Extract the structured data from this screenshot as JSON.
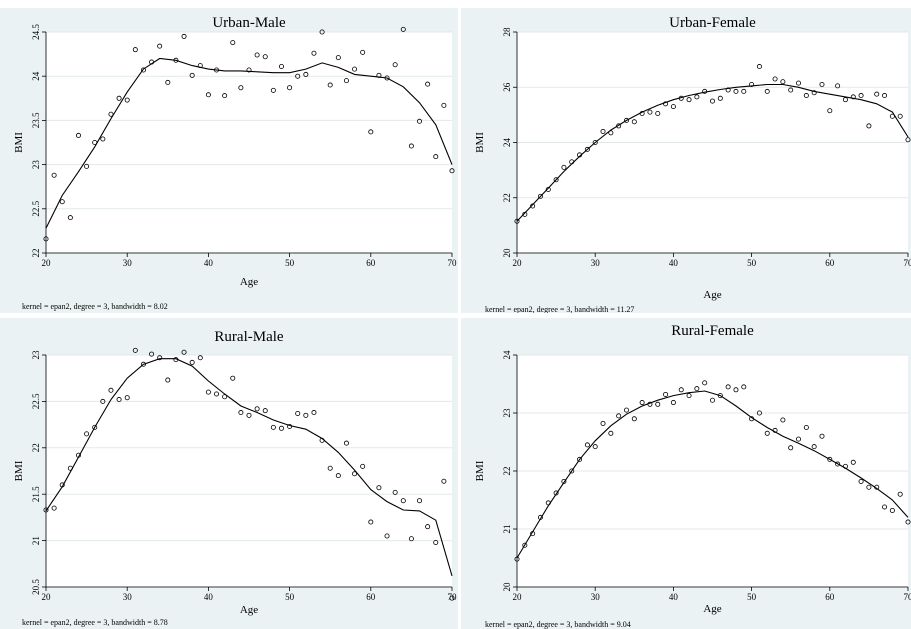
{
  "chart_data": [
    {
      "type": "scatter",
      "title": "Urban-Male",
      "xlabel": "Age",
      "ylabel": "BMI",
      "xlim": [
        20,
        70
      ],
      "ylim": [
        22,
        24.5
      ],
      "xticks": [
        "20",
        "30",
        "40",
        "50",
        "60",
        "70"
      ],
      "yticks": [
        "22",
        "22.5",
        "23",
        "23.5",
        "24",
        "24.5"
      ],
      "note": "kernel = epan2, degree = 3, bandwidth = 8.02",
      "grid": true,
      "points": [
        [
          20,
          22.16
        ],
        [
          21,
          22.88
        ],
        [
          22,
          22.58
        ],
        [
          23,
          22.4
        ],
        [
          24,
          23.33
        ],
        [
          25,
          22.98
        ],
        [
          26,
          23.25
        ],
        [
          27,
          23.29
        ],
        [
          28,
          23.57
        ],
        [
          29,
          23.75
        ],
        [
          30,
          23.73
        ],
        [
          31,
          24.3
        ],
        [
          32,
          24.07
        ],
        [
          33,
          24.16
        ],
        [
          34,
          24.34
        ],
        [
          35,
          23.93
        ],
        [
          36,
          24.18
        ],
        [
          37,
          24.45
        ],
        [
          38,
          24.01
        ],
        [
          39,
          24.12
        ],
        [
          40,
          23.79
        ],
        [
          41,
          24.07
        ],
        [
          42,
          23.78
        ],
        [
          43,
          24.38
        ],
        [
          44,
          23.87
        ],
        [
          45,
          24.07
        ],
        [
          46,
          24.24
        ],
        [
          47,
          24.22
        ],
        [
          48,
          23.84
        ],
        [
          49,
          24.11
        ],
        [
          50,
          23.87
        ],
        [
          51,
          24.0
        ],
        [
          52,
          24.02
        ],
        [
          53,
          24.26
        ],
        [
          54,
          24.5
        ],
        [
          55,
          23.9
        ],
        [
          56,
          24.21
        ],
        [
          57,
          23.95
        ],
        [
          58,
          24.08
        ],
        [
          59,
          24.27
        ],
        [
          60,
          23.37
        ],
        [
          61,
          24.01
        ],
        [
          62,
          23.98
        ],
        [
          63,
          24.13
        ],
        [
          64,
          24.53
        ],
        [
          65,
          23.21
        ],
        [
          66,
          23.49
        ],
        [
          67,
          23.91
        ],
        [
          68,
          23.09
        ],
        [
          69,
          23.67
        ],
        [
          70,
          22.93
        ]
      ],
      "fit": [
        [
          20,
          22.28
        ],
        [
          22,
          22.65
        ],
        [
          24,
          22.92
        ],
        [
          26,
          23.2
        ],
        [
          28,
          23.52
        ],
        [
          30,
          23.82
        ],
        [
          32,
          24.08
        ],
        [
          34,
          24.2
        ],
        [
          36,
          24.18
        ],
        [
          38,
          24.12
        ],
        [
          40,
          24.08
        ],
        [
          42,
          24.06
        ],
        [
          44,
          24.06
        ],
        [
          46,
          24.05
        ],
        [
          48,
          24.04
        ],
        [
          50,
          24.04
        ],
        [
          52,
          24.08
        ],
        [
          54,
          24.15
        ],
        [
          56,
          24.1
        ],
        [
          58,
          24.02
        ],
        [
          60,
          24.0
        ],
        [
          62,
          23.98
        ],
        [
          64,
          23.88
        ],
        [
          66,
          23.7
        ],
        [
          68,
          23.45
        ],
        [
          70,
          23.0
        ]
      ]
    },
    {
      "type": "scatter",
      "title": "Urban-Female",
      "xlabel": "Age",
      "ylabel": "BMI",
      "xlim": [
        20,
        70
      ],
      "ylim": [
        20,
        28
      ],
      "xticks": [
        "20",
        "30",
        "40",
        "50",
        "60",
        "70"
      ],
      "yticks": [
        "20",
        "22",
        "24",
        "26",
        "28"
      ],
      "note": "kernel = epan2, degree = 3, bandwidth = 11.27",
      "grid": true,
      "points": [
        [
          20,
          21.15
        ],
        [
          21,
          21.4
        ],
        [
          22,
          21.7
        ],
        [
          23,
          22.05
        ],
        [
          24,
          22.3
        ],
        [
          25,
          22.65
        ],
        [
          26,
          23.1
        ],
        [
          27,
          23.3
        ],
        [
          28,
          23.55
        ],
        [
          29,
          23.75
        ],
        [
          30,
          24.0
        ],
        [
          31,
          24.4
        ],
        [
          32,
          24.35
        ],
        [
          33,
          24.6
        ],
        [
          34,
          24.8
        ],
        [
          35,
          24.75
        ],
        [
          36,
          25.05
        ],
        [
          37,
          25.1
        ],
        [
          38,
          25.05
        ],
        [
          39,
          25.4
        ],
        [
          40,
          25.3
        ],
        [
          41,
          25.6
        ],
        [
          42,
          25.55
        ],
        [
          43,
          25.65
        ],
        [
          44,
          25.85
        ],
        [
          45,
          25.5
        ],
        [
          46,
          25.6
        ],
        [
          47,
          25.9
        ],
        [
          48,
          25.85
        ],
        [
          49,
          25.85
        ],
        [
          50,
          26.1
        ],
        [
          51,
          26.75
        ],
        [
          52,
          25.85
        ],
        [
          53,
          26.3
        ],
        [
          54,
          26.2
        ],
        [
          55,
          25.9
        ],
        [
          56,
          26.15
        ],
        [
          57,
          25.7
        ],
        [
          58,
          25.8
        ],
        [
          59,
          26.1
        ],
        [
          60,
          25.15
        ],
        [
          61,
          26.05
        ],
        [
          62,
          25.55
        ],
        [
          63,
          25.65
        ],
        [
          64,
          25.7
        ],
        [
          65,
          24.6
        ],
        [
          66,
          25.75
        ],
        [
          67,
          25.7
        ],
        [
          68,
          24.95
        ],
        [
          69,
          24.95
        ],
        [
          70,
          24.1
        ]
      ],
      "fit": [
        [
          20,
          21.15
        ],
        [
          22,
          21.75
        ],
        [
          24,
          22.35
        ],
        [
          26,
          22.95
        ],
        [
          28,
          23.5
        ],
        [
          30,
          24.0
        ],
        [
          32,
          24.45
        ],
        [
          34,
          24.8
        ],
        [
          36,
          25.1
        ],
        [
          38,
          25.35
        ],
        [
          40,
          25.55
        ],
        [
          42,
          25.7
        ],
        [
          44,
          25.82
        ],
        [
          46,
          25.92
        ],
        [
          48,
          26.0
        ],
        [
          50,
          26.05
        ],
        [
          52,
          26.1
        ],
        [
          54,
          26.1
        ],
        [
          56,
          26.0
        ],
        [
          58,
          25.85
        ],
        [
          60,
          25.75
        ],
        [
          62,
          25.65
        ],
        [
          64,
          25.55
        ],
        [
          66,
          25.4
        ],
        [
          68,
          25.1
        ],
        [
          70,
          24.2
        ]
      ]
    },
    {
      "type": "scatter",
      "title": "Rural-Male",
      "xlabel": "Age",
      "ylabel": "BMI",
      "xlim": [
        20,
        70
      ],
      "ylim": [
        20.5,
        23
      ],
      "xticks": [
        "20",
        "30",
        "40",
        "50",
        "60",
        "70"
      ],
      "yticks": [
        "20.5",
        "21",
        "21.5",
        "22",
        "22.5",
        "23"
      ],
      "note": "kernel = epan2, degree = 3, bandwidth = 8.78",
      "grid": true,
      "points": [
        [
          20,
          21.33
        ],
        [
          21,
          21.35
        ],
        [
          22,
          21.6
        ],
        [
          23,
          21.78
        ],
        [
          24,
          21.92
        ],
        [
          25,
          22.15
        ],
        [
          26,
          22.22
        ],
        [
          27,
          22.5
        ],
        [
          28,
          22.62
        ],
        [
          29,
          22.52
        ],
        [
          30,
          22.54
        ],
        [
          31,
          23.05
        ],
        [
          32,
          22.9
        ],
        [
          33,
          23.01
        ],
        [
          34,
          22.97
        ],
        [
          35,
          22.73
        ],
        [
          36,
          22.95
        ],
        [
          37,
          23.03
        ],
        [
          38,
          22.92
        ],
        [
          39,
          22.97
        ],
        [
          40,
          22.6
        ],
        [
          41,
          22.58
        ],
        [
          42,
          22.55
        ],
        [
          43,
          22.75
        ],
        [
          44,
          22.38
        ],
        [
          45,
          22.35
        ],
        [
          46,
          22.42
        ],
        [
          47,
          22.4
        ],
        [
          48,
          22.22
        ],
        [
          49,
          22.21
        ],
        [
          50,
          22.23
        ],
        [
          51,
          22.37
        ],
        [
          52,
          22.35
        ],
        [
          53,
          22.38
        ],
        [
          54,
          22.08
        ],
        [
          55,
          21.78
        ],
        [
          56,
          21.7
        ],
        [
          57,
          22.05
        ],
        [
          58,
          21.72
        ],
        [
          59,
          21.8
        ],
        [
          60,
          21.2
        ],
        [
          61,
          21.57
        ],
        [
          62,
          21.05
        ],
        [
          63,
          21.52
        ],
        [
          64,
          21.43
        ],
        [
          65,
          21.02
        ],
        [
          66,
          21.43
        ],
        [
          67,
          21.15
        ],
        [
          68,
          20.98
        ],
        [
          69,
          21.64
        ],
        [
          70,
          20.38
        ]
      ],
      "fit": [
        [
          20,
          21.32
        ],
        [
          22,
          21.58
        ],
        [
          24,
          21.9
        ],
        [
          26,
          22.22
        ],
        [
          28,
          22.52
        ],
        [
          30,
          22.75
        ],
        [
          32,
          22.9
        ],
        [
          34,
          22.96
        ],
        [
          36,
          22.96
        ],
        [
          38,
          22.88
        ],
        [
          40,
          22.72
        ],
        [
          42,
          22.58
        ],
        [
          44,
          22.45
        ],
        [
          46,
          22.38
        ],
        [
          48,
          22.3
        ],
        [
          50,
          22.24
        ],
        [
          52,
          22.2
        ],
        [
          54,
          22.1
        ],
        [
          56,
          21.95
        ],
        [
          58,
          21.76
        ],
        [
          60,
          21.55
        ],
        [
          62,
          21.42
        ],
        [
          64,
          21.33
        ],
        [
          66,
          21.32
        ],
        [
          68,
          21.22
        ],
        [
          70,
          20.62
        ]
      ]
    },
    {
      "type": "scatter",
      "title": "Rural-Female",
      "xlabel": "Age",
      "ylabel": "BMI",
      "xlim": [
        20,
        70
      ],
      "ylim": [
        20,
        24
      ],
      "xticks": [
        "20",
        "30",
        "40",
        "50",
        "60",
        "70"
      ],
      "yticks": [
        "20",
        "21",
        "22",
        "23",
        "24"
      ],
      "note": "kernel = epan2, degree = 3, bandwidth = 9.04",
      "grid": true,
      "points": [
        [
          20,
          20.48
        ],
        [
          21,
          20.72
        ],
        [
          22,
          20.92
        ],
        [
          23,
          21.2
        ],
        [
          24,
          21.45
        ],
        [
          25,
          21.62
        ],
        [
          26,
          21.82
        ],
        [
          27,
          22.0
        ],
        [
          28,
          22.2
        ],
        [
          29,
          22.45
        ],
        [
          30,
          22.42
        ],
        [
          31,
          22.82
        ],
        [
          32,
          22.65
        ],
        [
          33,
          22.95
        ],
        [
          34,
          23.05
        ],
        [
          35,
          22.9
        ],
        [
          36,
          23.18
        ],
        [
          37,
          23.15
        ],
        [
          38,
          23.15
        ],
        [
          39,
          23.32
        ],
        [
          40,
          23.18
        ],
        [
          41,
          23.4
        ],
        [
          42,
          23.3
        ],
        [
          43,
          23.42
        ],
        [
          44,
          23.52
        ],
        [
          45,
          23.22
        ],
        [
          46,
          23.3
        ],
        [
          47,
          23.45
        ],
        [
          48,
          23.4
        ],
        [
          49,
          23.45
        ],
        [
          50,
          22.9
        ],
        [
          51,
          23.0
        ],
        [
          52,
          22.65
        ],
        [
          53,
          22.7
        ],
        [
          54,
          22.88
        ],
        [
          55,
          22.4
        ],
        [
          56,
          22.55
        ],
        [
          57,
          22.75
        ],
        [
          58,
          22.42
        ],
        [
          59,
          22.6
        ],
        [
          60,
          22.2
        ],
        [
          61,
          22.12
        ],
        [
          62,
          22.08
        ],
        [
          63,
          22.15
        ],
        [
          64,
          21.82
        ],
        [
          65,
          21.72
        ],
        [
          66,
          21.72
        ],
        [
          67,
          21.38
        ],
        [
          68,
          21.32
        ],
        [
          69,
          21.6
        ],
        [
          70,
          21.12
        ]
      ],
      "fit": [
        [
          20,
          20.5
        ],
        [
          22,
          20.95
        ],
        [
          24,
          21.4
        ],
        [
          26,
          21.8
        ],
        [
          28,
          22.2
        ],
        [
          30,
          22.52
        ],
        [
          32,
          22.78
        ],
        [
          34,
          22.98
        ],
        [
          36,
          23.12
        ],
        [
          38,
          23.22
        ],
        [
          40,
          23.3
        ],
        [
          42,
          23.35
        ],
        [
          44,
          23.38
        ],
        [
          46,
          23.3
        ],
        [
          48,
          23.12
        ],
        [
          50,
          22.92
        ],
        [
          52,
          22.75
        ],
        [
          54,
          22.6
        ],
        [
          56,
          22.48
        ],
        [
          58,
          22.35
        ],
        [
          60,
          22.2
        ],
        [
          62,
          22.05
        ],
        [
          64,
          21.88
        ],
        [
          66,
          21.7
        ],
        [
          68,
          21.5
        ],
        [
          70,
          21.2
        ]
      ]
    }
  ]
}
